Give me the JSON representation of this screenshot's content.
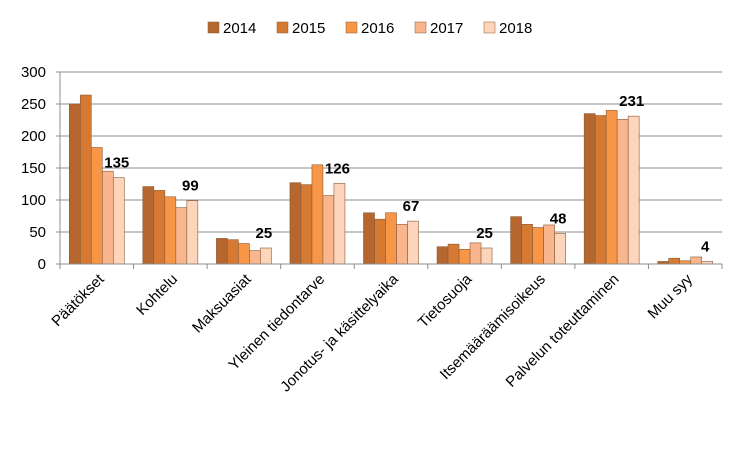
{
  "chart_data": {
    "type": "bar",
    "title": "",
    "xlabel": "",
    "ylabel": "",
    "ylim": [
      0,
      300
    ],
    "yticks": [
      0,
      50,
      100,
      150,
      200,
      250,
      300
    ],
    "grid": true,
    "legend_position": "top",
    "categories": [
      "Päätökset",
      "Kohtelu",
      "Maksuasiat",
      "Yleinen tiedontarve",
      "Jonotus- ja käsittelyaika",
      "Tietosuoja",
      "Itsemääräämisoikeus",
      "Palvelun toteuttaminen",
      "Muu syy"
    ],
    "series": [
      {
        "name": "2014",
        "color": "#B5672F",
        "values": [
          250,
          121,
          40,
          127,
          80,
          27,
          74,
          235,
          4
        ]
      },
      {
        "name": "2015",
        "color": "#D67A33",
        "values": [
          264,
          115,
          38,
          124,
          70,
          31,
          62,
          232,
          9
        ]
      },
      {
        "name": "2016",
        "color": "#F79646",
        "values": [
          182,
          105,
          32,
          155,
          80,
          23,
          57,
          240,
          5
        ]
      },
      {
        "name": "2017",
        "color": "#F9B68E",
        "values": [
          145,
          88,
          21,
          107,
          62,
          33,
          61,
          226,
          11
        ]
      },
      {
        "name": "2018",
        "color": "#FCD5BB",
        "values": [
          135,
          99,
          25,
          126,
          67,
          25,
          48,
          231,
          4
        ]
      }
    ],
    "data_labels": {
      "series": "2018",
      "values": [
        135,
        99,
        25,
        126,
        67,
        25,
        48,
        231,
        4
      ]
    }
  }
}
